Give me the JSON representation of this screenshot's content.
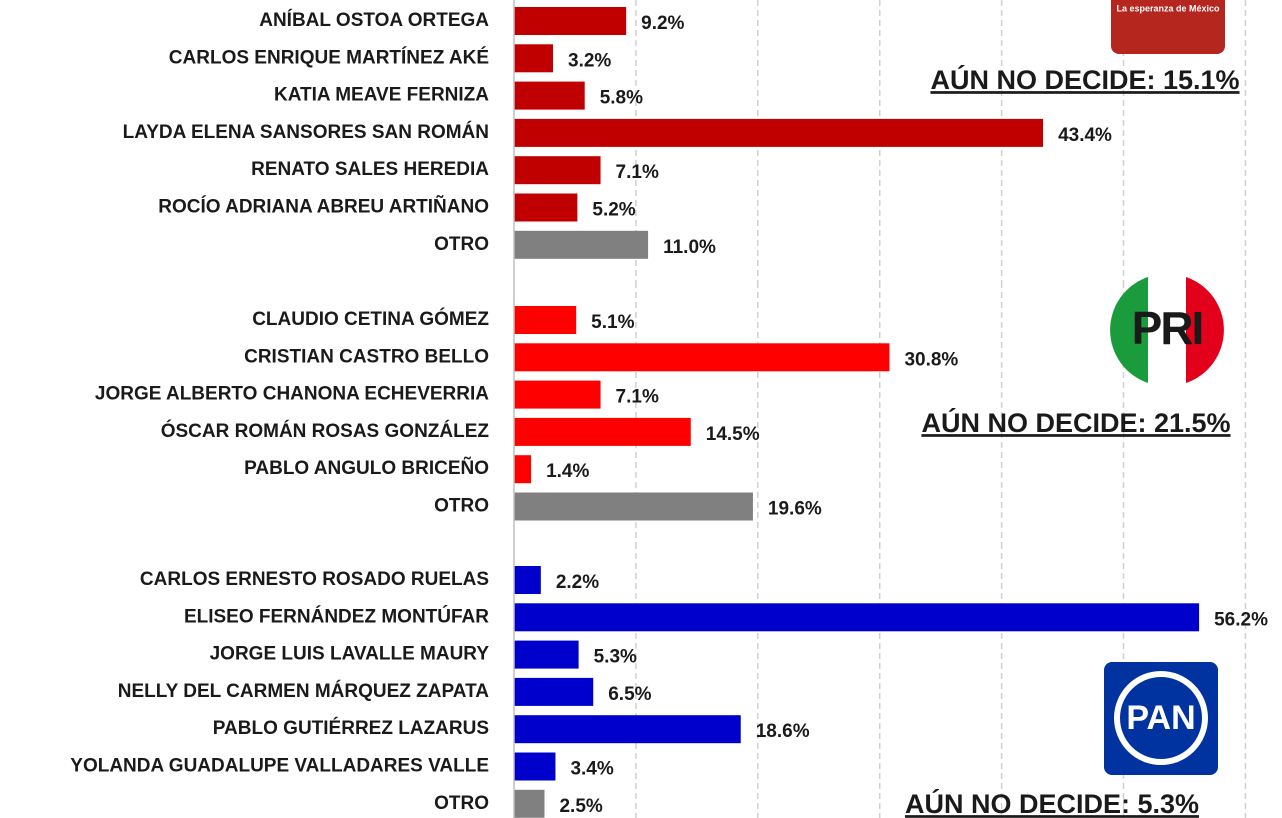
{
  "chart_data": [
    {
      "type": "bar",
      "orientation": "horizontal",
      "categories": [
        "ANÍBAL OSTOA ORTEGA",
        "CARLOS ENRIQUE MARTÍNEZ AKÉ",
        "KATIA MEAVE FERNIZA",
        "LAYDA ELENA SANSORES SAN ROMÁN",
        "RENATO SALES HEREDIA",
        "ROCÍO ADRIANA ABREU ARTIÑANO",
        "OTRO"
      ],
      "values": [
        9.2,
        3.2,
        5.8,
        43.4,
        7.1,
        5.2,
        11.0
      ],
      "value_labels": [
        "9.2%",
        "3.2%",
        "5.8%",
        "43.4%",
        "7.1%",
        "5.2%",
        "11.0%"
      ],
      "colors": [
        "#c00000",
        "#c00000",
        "#c00000",
        "#c00000",
        "#c00000",
        "#c00000",
        "#808080"
      ],
      "annotation": "AÚN NO DECIDE: 15.1%",
      "logo_text": "La esperanza de México",
      "xlim": [
        0,
        63
      ],
      "xticks": [
        10,
        20,
        30,
        40,
        50,
        60
      ]
    },
    {
      "type": "bar",
      "orientation": "horizontal",
      "categories": [
        "CLAUDIO CETINA GÓMEZ",
        "CRISTIAN CASTRO BELLO",
        "JORGE ALBERTO CHANONA ECHEVERRIA",
        "ÓSCAR ROMÁN ROSAS GONZÁLEZ",
        "PABLO ANGULO BRICEÑO",
        "OTRO"
      ],
      "values": [
        5.1,
        30.8,
        7.1,
        14.5,
        1.4,
        19.6
      ],
      "value_labels": [
        "5.1%",
        "30.8%",
        "7.1%",
        "14.5%",
        "1.4%",
        "19.6%"
      ],
      "colors": [
        "#ff0000",
        "#ff0000",
        "#ff0000",
        "#ff0000",
        "#ff0000",
        "#808080"
      ],
      "annotation": "AÚN NO DECIDE: 21.5%",
      "logo_text": "PRI",
      "xlim": [
        0,
        63
      ],
      "xticks": [
        10,
        20,
        30,
        40,
        50,
        60
      ]
    },
    {
      "type": "bar",
      "orientation": "horizontal",
      "categories": [
        "CARLOS ERNESTO ROSADO RUELAS",
        "ELISEO FERNÁNDEZ MONTÚFAR",
        "JORGE LUIS LAVALLE MAURY",
        "NELLY DEL CARMEN MÁRQUEZ ZAPATA",
        "PABLO GUTIÉRREZ LAZARUS",
        "YOLANDA GUADALUPE VALLADARES VALLE",
        "OTRO"
      ],
      "values": [
        2.2,
        56.2,
        5.3,
        6.5,
        18.6,
        3.4,
        2.5
      ],
      "value_labels": [
        "2.2%",
        "56.2%",
        "5.3%",
        "6.5%",
        "18.6%",
        "3.4%",
        "2.5%"
      ],
      "colors": [
        "#0000cc",
        "#0000cc",
        "#0000cc",
        "#0000cc",
        "#0000cc",
        "#0000cc",
        "#808080"
      ],
      "annotation": "AÚN NO DECIDE: 5.3%",
      "logo_text": "PAN",
      "xlim": [
        0,
        63
      ],
      "xticks": [
        10,
        20,
        30,
        40,
        50,
        60
      ]
    }
  ]
}
